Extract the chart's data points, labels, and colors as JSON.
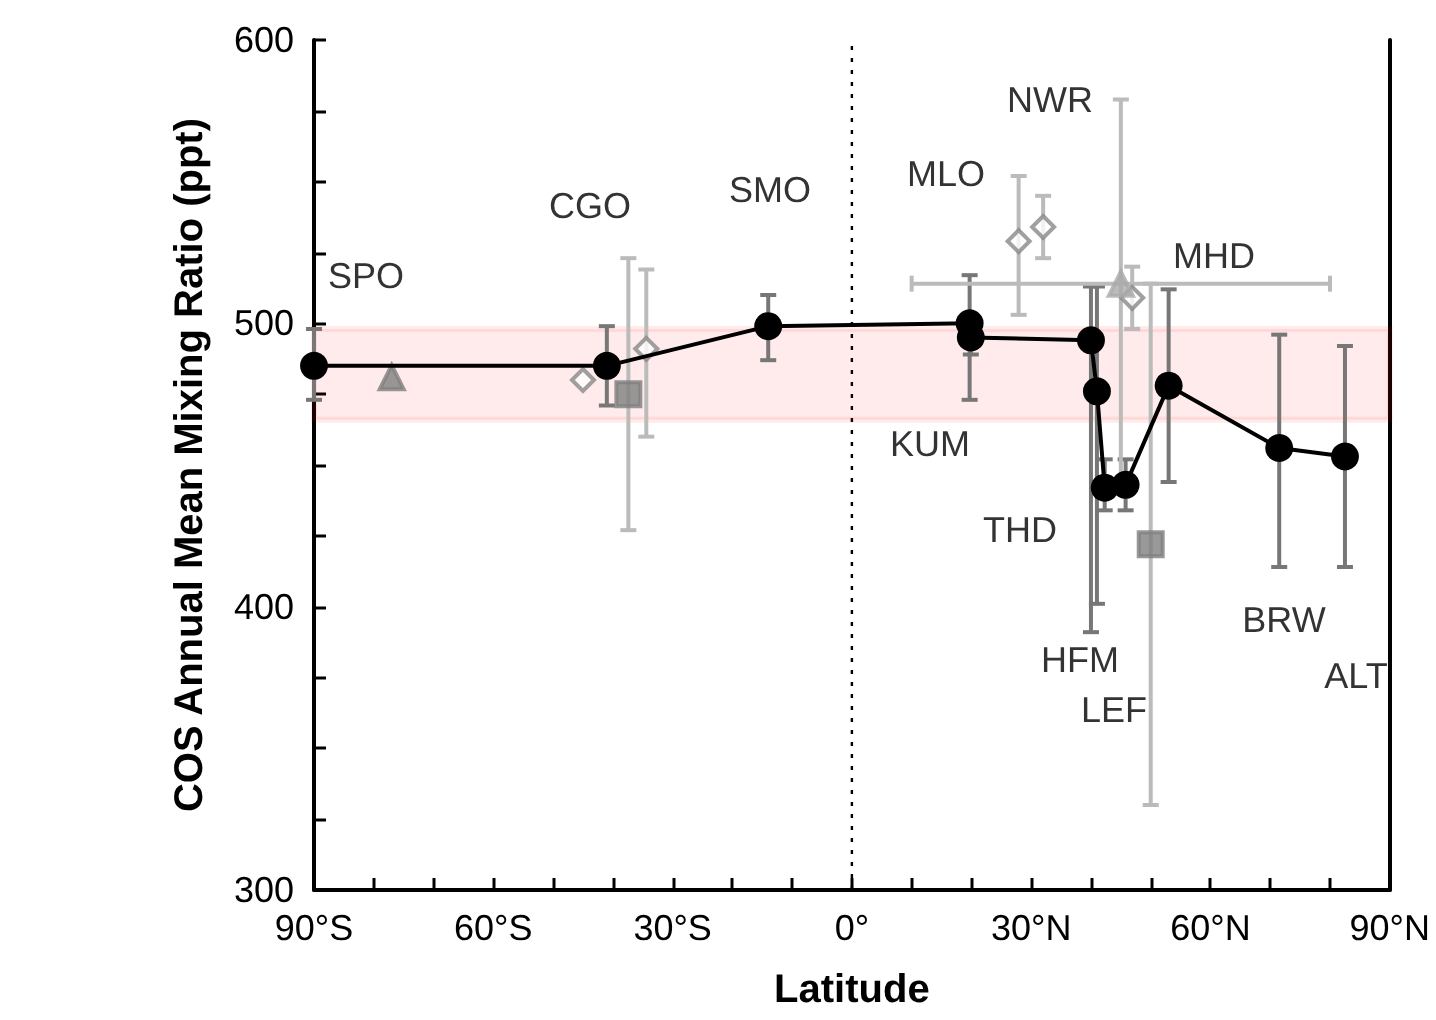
{
  "chart_data": {
    "type": "scatter",
    "xlabel": "Latitude",
    "ylabel": "COS Annual Mean Mixing Ratio (ppt)",
    "xlim": [
      -90,
      90
    ],
    "xticks": [
      {
        "value": -90,
        "label": "90°S"
      },
      {
        "value": -80,
        "label": null
      },
      {
        "value": -70,
        "label": null
      },
      {
        "value": -60,
        "label": "60°S"
      },
      {
        "value": -50,
        "label": null
      },
      {
        "value": -40,
        "label": null
      },
      {
        "value": -30,
        "label": "30°S"
      },
      {
        "value": -20,
        "label": null
      },
      {
        "value": -10,
        "label": null
      },
      {
        "value": 0,
        "label": "0°"
      },
      {
        "value": 10,
        "label": null
      },
      {
        "value": 20,
        "label": null
      },
      {
        "value": 30,
        "label": "30°N"
      },
      {
        "value": 40,
        "label": null
      },
      {
        "value": 50,
        "label": null
      },
      {
        "value": 60,
        "label": "60°N"
      },
      {
        "value": 70,
        "label": null
      },
      {
        "value": 80,
        "label": null
      },
      {
        "value": 90,
        "label": "90°N"
      }
    ],
    "ylim": [
      300,
      600
    ],
    "yticks": [
      300,
      {
        "value": 325,
        "label": null
      },
      {
        "value": 350,
        "label": null
      },
      {
        "value": 375,
        "label": null
      },
      400,
      {
        "value": 425,
        "label": null
      },
      {
        "value": 450,
        "label": null
      },
      {
        "value": 475,
        "label": null
      },
      500,
      {
        "value": 525,
        "label": null
      },
      {
        "value": 550,
        "label": null
      },
      {
        "value": 575,
        "label": null
      },
      600
    ],
    "grid": false,
    "series": [
      {
        "type": "line",
        "color": "#000000",
        "marker": "circle",
        "line_style": "solid",
        "x": [
          -90,
          -41,
          -14,
          19.7,
          19.9,
          40,
          41,
          42.3,
          45.8,
          53,
          71.5,
          82.5
        ],
        "values": [
          485,
          485,
          499,
          500,
          495,
          494,
          476,
          442,
          443,
          478,
          456,
          453
        ],
        "errors": [
          [
            473,
            498
          ],
          [
            471,
            499
          ],
          [
            487,
            510
          ],
          [
            473,
            517
          ],
          [
            489,
            503
          ],
          [
            391,
            513
          ],
          [
            401,
            513
          ],
          [
            434,
            452
          ],
          [
            434,
            452
          ],
          [
            444,
            512
          ],
          [
            414,
            496
          ],
          [
            414,
            492
          ]
        ]
      },
      {
        "color": "#888888",
        "marker": "diamond",
        "x": [
          -45,
          -34.4,
          27.9,
          32,
          46.9
        ],
        "values": [
          480,
          491,
          529,
          534,
          509
        ],
        "errors": [
          null,
          [
            460,
            519
          ],
          [
            503,
            552
          ],
          [
            523,
            545
          ],
          [
            498,
            520
          ]
        ]
      },
      {
        "color": "#808080",
        "marker": "square",
        "x": [
          -37.4,
          50
        ],
        "values": [
          475,
          422
        ],
        "errors": [
          [
            427,
            523
          ],
          [
            330,
            514
          ]
        ]
      },
      {
        "color": "#808080",
        "marker": "triangle",
        "x": [
          -77
        ],
        "values": [
          481
        ]
      },
      {
        "color": "#aaaaaa",
        "marker": "triangle",
        "x": [
          45
        ],
        "values": [
          514
        ],
        "errors": [
          [
            440,
            579
          ]
        ],
        "xerrors": [
          [
            10,
            80
          ]
        ]
      }
    ],
    "ref_lines": [
      {
        "axis": "x",
        "value": 0,
        "line_style": "dotted",
        "color": "#000000"
      }
    ],
    "bands": [
      {
        "axis": "y",
        "from": 466,
        "to": 498,
        "color": "#ff0000"
      }
    ],
    "annotations": [
      "SPO",
      "CGO",
      "SMO",
      "MLO",
      "NWR",
      "MHD",
      "KUM",
      "THD",
      "HFM",
      "LEF",
      "BRW",
      "ALT"
    ]
  }
}
